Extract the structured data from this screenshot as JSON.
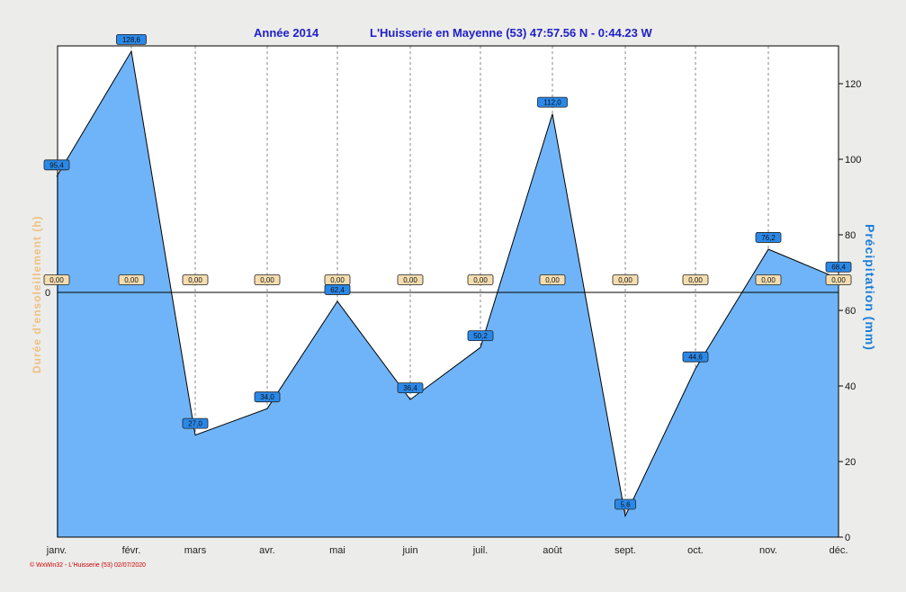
{
  "title": {
    "year_text": "Année  2014",
    "location_text": "L'Huisserie en Mayenne (53) 47:57.56 N - 0:44.23 W"
  },
  "footer": "© WxWin32 - L'Huisserie (53)  02/07/2020",
  "colors": {
    "area": "#6fb4f8",
    "precip_label_bg": "#2a88e8",
    "sun_label_bg": "#f6ddb0",
    "right_axis_title": "#1a7fd8",
    "left_axis_title": "#f0c080",
    "title": "#2020c8"
  },
  "chart_data": {
    "type": "area",
    "categories": [
      "janv.",
      "févr.",
      "mars",
      "avr.",
      "mai",
      "juin",
      "juil.",
      "août",
      "sept.",
      "oct.",
      "nov.",
      "déc."
    ],
    "series": [
      {
        "name": "Précipitation (mm)",
        "axis": "right",
        "values": [
          95.4,
          128.6,
          27.0,
          34.0,
          62.4,
          36.4,
          50.2,
          112.0,
          5.6,
          44.6,
          76.2,
          68.4
        ],
        "labels": [
          "95,4",
          "128,6",
          "27,0",
          "34,0",
          "62,4",
          "36,4",
          "50,2",
          "112,0",
          "5,6",
          "44,6",
          "76,2",
          "68,4"
        ]
      },
      {
        "name": "Durée d'ensoleillement (h)",
        "axis": "left",
        "values": [
          0,
          0,
          0,
          0,
          0,
          0,
          0,
          0,
          0,
          0,
          0,
          0
        ],
        "labels": [
          "0,00",
          "0,00",
          "0,00",
          "0,00",
          "0,00",
          "0,00",
          "0,00",
          "0,00",
          "0,00",
          "0,00",
          "0,00",
          "0,00"
        ]
      }
    ],
    "y_right": {
      "label": "Précipitation  (mm)",
      "ylim": [
        0,
        130
      ],
      "ticks": [
        0,
        20,
        40,
        60,
        80,
        100,
        120
      ],
      "tick_labels": [
        "0",
        "20",
        "40",
        "60",
        "80",
        "100",
        "120"
      ]
    },
    "y_left": {
      "label": "Durée d'ensoleillement  (h)",
      "tick_labels": [
        "0"
      ]
    },
    "grid": "vertical dashed",
    "legend": "none"
  }
}
